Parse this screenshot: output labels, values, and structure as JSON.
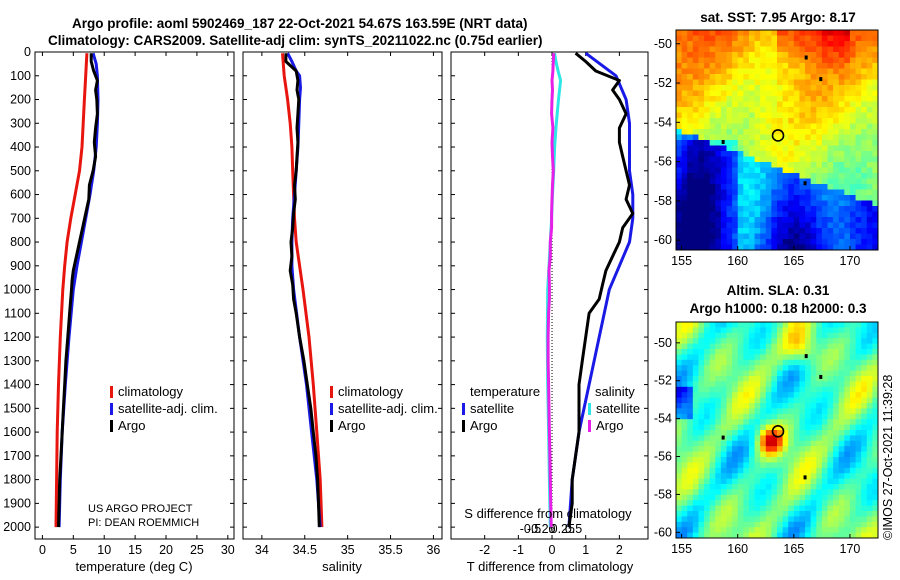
{
  "figure": {
    "title_line1": "Argo profile: aoml 5902469_187 22-Oct-2021 54.67S 163.59E (NRT data)",
    "title_line2": "Climatology: CARS2009. Satellite-adj clim: synTS_20211022.nc (0.75d earlier)",
    "credit_line1": "US ARGO PROJECT",
    "credit_line2": "PI: DEAN ROEMMICH",
    "stamp": "©IMOS 27-Oct-2021 11:39:28"
  },
  "colors": {
    "climatology": "#e8150f",
    "satellite": "#1a1ae6",
    "argo": "#000000",
    "sat_salinity": "#2ee6e6",
    "argo_salinity": "#e620e6"
  },
  "chart_data": [
    {
      "type": "line",
      "panel": "temperature",
      "xlabel": "temperature (deg C)",
      "ylabel": "",
      "xlim": [
        -1.2,
        31
      ],
      "ylim": [
        2050,
        0
      ],
      "xticks": [
        "0",
        "5",
        "10",
        "15",
        "20",
        "25",
        "30"
      ],
      "xtick_values": [
        0,
        5,
        10,
        15,
        20,
        25,
        30
      ],
      "yticks": [
        "0",
        "100",
        "200",
        "300",
        "400",
        "500",
        "600",
        "700",
        "800",
        "900",
        "1000",
        "1100",
        "1200",
        "1300",
        "1400",
        "1500",
        "1600",
        "1700",
        "1800",
        "1900",
        "2000"
      ],
      "ytick_values": [
        0,
        100,
        200,
        300,
        400,
        500,
        600,
        700,
        800,
        900,
        1000,
        1100,
        1200,
        1300,
        1400,
        1500,
        1600,
        1700,
        1800,
        1900,
        2000
      ],
      "legend": [
        "climatology",
        "satellite-adj. clim.",
        "Argo"
      ],
      "series": [
        {
          "name": "climatology",
          "color_key": "climatology",
          "depth": [
            5,
            100,
            200,
            300,
            400,
            500,
            600,
            700,
            800,
            900,
            1000,
            1200,
            1400,
            1600,
            1800,
            2000
          ],
          "values": [
            7.2,
            7.0,
            6.8,
            6.6,
            6.4,
            6.0,
            5.3,
            4.6,
            4.0,
            3.6,
            3.3,
            2.9,
            2.6,
            2.4,
            2.3,
            2.2
          ]
        },
        {
          "name": "satellite-adj. clim.",
          "color_key": "satellite",
          "depth": [
            5,
            50,
            100,
            200,
            300,
            400,
            500,
            600,
            700,
            800,
            900,
            1000,
            1200,
            1400,
            1600,
            1800,
            2000
          ],
          "values": [
            8.2,
            8.7,
            8.9,
            9.0,
            8.9,
            8.7,
            8.3,
            7.7,
            7.0,
            6.3,
            5.6,
            5.0,
            4.3,
            3.7,
            3.2,
            2.9,
            2.7
          ]
        },
        {
          "name": "Argo",
          "color_key": "argo",
          "depth": [
            5,
            40,
            80,
            120,
            160,
            200,
            260,
            320,
            380,
            440,
            500,
            560,
            620,
            680,
            740,
            800,
            860,
            920,
            960,
            1000,
            1100,
            1200,
            1300,
            1400,
            1500,
            1600,
            1700,
            1800,
            1900,
            2000
          ],
          "values": [
            7.9,
            7.9,
            8.3,
            8.9,
            8.6,
            8.8,
            8.9,
            8.6,
            8.4,
            8.6,
            8.2,
            7.6,
            7.5,
            7.0,
            6.5,
            6.0,
            5.5,
            5.0,
            4.8,
            4.7,
            4.4,
            4.1,
            3.8,
            3.6,
            3.4,
            3.2,
            3.0,
            2.8,
            2.7,
            2.6
          ]
        }
      ]
    },
    {
      "type": "line",
      "panel": "salinity",
      "xlabel": "salinity",
      "ylabel": "",
      "xlim": [
        33.78,
        36.1
      ],
      "ylim": [
        2050,
        0
      ],
      "xticks": [
        "34",
        "34.5",
        "35",
        "35.5",
        "36"
      ],
      "xtick_values": [
        34,
        34.5,
        35,
        35.5,
        36
      ],
      "legend": [
        "climatology",
        "satellite-adj. clim.",
        "Argo"
      ],
      "series": [
        {
          "name": "climatology",
          "color_key": "climatology",
          "depth": [
            5,
            100,
            200,
            300,
            400,
            500,
            600,
            700,
            800,
            900,
            1000,
            1200,
            1400,
            1600,
            1800,
            2000
          ],
          "values": [
            34.24,
            34.26,
            34.3,
            34.33,
            34.35,
            34.36,
            34.37,
            34.38,
            34.4,
            34.44,
            34.48,
            34.55,
            34.6,
            34.64,
            34.68,
            34.7
          ]
        },
        {
          "name": "satellite-adj. clim.",
          "color_key": "satellite",
          "depth": [
            5,
            40,
            80,
            100,
            150,
            200,
            300,
            400,
            500,
            600,
            700,
            800,
            900,
            1000,
            1200,
            1400,
            1600,
            1800,
            2000
          ],
          "values": [
            34.3,
            34.35,
            34.4,
            34.44,
            34.45,
            34.44,
            34.43,
            34.42,
            34.4,
            34.38,
            34.36,
            34.35,
            34.35,
            34.37,
            34.44,
            34.52,
            34.58,
            34.64,
            34.68
          ]
        },
        {
          "name": "Argo",
          "color_key": "argo",
          "depth": [
            5,
            40,
            80,
            120,
            160,
            200,
            260,
            320,
            380,
            440,
            500,
            560,
            620,
            680,
            740,
            800,
            860,
            920,
            980,
            1040,
            1100,
            1200,
            1300,
            1400,
            1500,
            1600,
            1700,
            1800,
            1900,
            2000
          ],
          "values": [
            34.28,
            34.28,
            34.4,
            34.42,
            34.41,
            34.43,
            34.42,
            34.41,
            34.42,
            34.41,
            34.4,
            34.38,
            34.39,
            34.37,
            34.36,
            34.34,
            34.35,
            34.33,
            34.36,
            34.37,
            34.4,
            34.44,
            34.49,
            34.53,
            34.57,
            34.6,
            34.63,
            34.65,
            34.66,
            34.67
          ]
        }
      ]
    },
    {
      "type": "line",
      "panel": "difference",
      "xlabel": "T difference from climatology",
      "xlabel_top": "S difference from climatology",
      "xlim": [
        -3.0,
        2.85
      ],
      "ylim": [
        2050,
        0
      ],
      "xticks": [
        "-2",
        "-1",
        "0",
        "1",
        "2"
      ],
      "xtick_values": [
        -2,
        -1,
        0,
        1,
        2
      ],
      "sticks": [
        "-0.5",
        "-0.25",
        "0",
        "0.25",
        "0.5"
      ],
      "legend_left_title": "temperature",
      "legend_right_title": "salinity",
      "legend_left": [
        "satellite",
        "Argo"
      ],
      "legend_right": [
        "satellite",
        "Argo"
      ],
      "series": [
        {
          "name": "temperature satellite",
          "color_key": "satellite",
          "depth": [
            5,
            100,
            200,
            300,
            400,
            500,
            600,
            700,
            800,
            900,
            1000,
            1200,
            1400,
            1600,
            1800,
            2000
          ],
          "values": [
            1.0,
            1.9,
            2.2,
            2.3,
            2.3,
            2.3,
            2.4,
            2.4,
            2.3,
            2.0,
            1.7,
            1.4,
            1.1,
            0.8,
            0.6,
            0.5
          ]
        },
        {
          "name": "temperature Argo",
          "color_key": "argo",
          "depth": [
            5,
            40,
            80,
            120,
            160,
            200,
            260,
            320,
            380,
            440,
            500,
            560,
            620,
            680,
            740,
            800,
            860,
            920,
            980,
            1040,
            1100,
            1200,
            1300,
            1400,
            1500,
            1600,
            1700,
            1800,
            1900,
            2000
          ],
          "values": [
            0.7,
            1.0,
            1.3,
            2.0,
            1.8,
            2.0,
            2.2,
            2.0,
            2.0,
            2.1,
            2.2,
            2.3,
            2.2,
            2.4,
            2.1,
            2.0,
            1.8,
            1.6,
            1.5,
            1.4,
            1.1,
            1.0,
            0.9,
            0.8,
            0.8,
            0.8,
            0.7,
            0.6,
            0.6,
            0.5
          ]
        },
        {
          "name": "salinity satellite",
          "color_key": "sat_salinity",
          "depth": [
            5,
            40,
            80,
            120,
            200,
            300,
            400,
            500,
            600,
            700,
            800,
            900,
            1000,
            1200,
            1400,
            1600,
            1800,
            2000
          ],
          "values": [
            0.06,
            0.09,
            0.14,
            0.2,
            0.15,
            0.1,
            0.06,
            0.04,
            0.01,
            -0.01,
            -0.04,
            -0.07,
            -0.1,
            -0.11,
            -0.1,
            -0.08,
            -0.06,
            -0.04
          ]
        },
        {
          "name": "salinity Argo",
          "color_key": "argo_salinity",
          "depth": [
            5,
            40,
            80,
            120,
            160,
            200,
            260,
            320,
            380,
            440,
            500,
            560,
            620,
            680,
            740,
            800,
            860,
            920,
            980,
            1040,
            1100,
            1200,
            1300,
            1400,
            1500,
            1600,
            1700,
            1800,
            1900,
            2000
          ],
          "values": [
            0.04,
            0.03,
            0.02,
            0.0,
            0.01,
            0.0,
            -0.01,
            0.02,
            0.0,
            0.01,
            0.03,
            0.01,
            0.0,
            -0.01,
            -0.01,
            -0.04,
            -0.04,
            -0.07,
            -0.06,
            -0.06,
            -0.08,
            -0.09,
            -0.09,
            -0.08,
            -0.07,
            -0.06,
            -0.05,
            -0.04,
            -0.03,
            -0.02
          ]
        }
      ]
    },
    {
      "type": "heatmap",
      "panel": "map_sst",
      "title": "sat. SST: 7.95 Argo: 8.17",
      "xticks": [
        "155",
        "160",
        "165",
        "170"
      ],
      "xtick_values": [
        155,
        160,
        165,
        170
      ],
      "yticks": [
        "-50",
        "-52",
        "-54",
        "-56",
        "-58",
        "-60"
      ],
      "ytick_values": [
        -50,
        -52,
        -54,
        -56,
        -58,
        -60
      ],
      "xlim": [
        154.5,
        172.5
      ],
      "ylim": [
        -60.5,
        -49.3
      ],
      "marker": {
        "lon": 163.59,
        "lat": -54.67
      }
    },
    {
      "type": "heatmap",
      "panel": "map_sla",
      "title": "Altim. SLA: 0.31",
      "title2": "Argo h1000: 0.18 h2000: 0.3",
      "xticks": [
        "155",
        "160",
        "165",
        "170"
      ],
      "xtick_values": [
        155,
        160,
        165,
        170
      ],
      "yticks": [
        "-50",
        "-52",
        "-54",
        "-56",
        "-58",
        "-60"
      ],
      "ytick_values": [
        -50,
        -52,
        -54,
        -56,
        -58,
        -60
      ],
      "xlim": [
        154.5,
        172.5
      ],
      "ylim": [
        -60.3,
        -48.9
      ],
      "marker": {
        "lon": 163.59,
        "lat": -54.67
      }
    }
  ]
}
